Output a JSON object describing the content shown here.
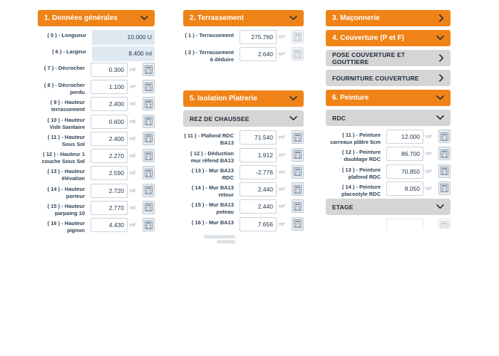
{
  "theme": {
    "accent_orange": "#EF8318",
    "orange_header_text": "#FFFFFF",
    "gray_header_bg": "#D5D5D5",
    "gray_header_text": "#1B2733",
    "label_color": "#2E4156",
    "value_color": "#253746",
    "unit_color": "#8FA2B3",
    "readonly_field_bg": "#DFE9F2",
    "input_border": "#C9D2DA",
    "calc_button_bg": "#E7EBEF",
    "calc_button_border": "#BFC9D2",
    "calc_icon_color": "#8496A8",
    "chevron_color": "#333333"
  },
  "icons": {
    "chevron_down": "chevron-down-icon",
    "chevron_right": "chevron-right-icon",
    "calculator": "calculator-icon"
  },
  "columns": [
    {
      "sections": [
        {
          "title": "1. Données générales",
          "style": "orange",
          "chevron": "down",
          "rows": [
            {
              "label": "( 5 ) - Longueur",
              "value": "10.000",
              "unit": "U",
              "readonly": true
            },
            {
              "label": "( 6 ) - Largeur",
              "value": "8.400",
              "unit": "ml",
              "readonly": true
            },
            {
              "label": "( 7 ) - Décrocher",
              "value": "0.300",
              "unit": "ml"
            },
            {
              "label": "( 8 ) - Décrocher perdu",
              "value": "1.100",
              "unit": "m²"
            },
            {
              "label": "( 9 ) - Hauteur terrassement",
              "value": "2.400",
              "unit": "ml"
            },
            {
              "label": "( 10 ) - Hauteur Vide Sanitaire",
              "value": "0.600",
              "unit": "ml"
            },
            {
              "label": "( 11 ) - Hauteur Sous Sol",
              "value": "2.400",
              "unit": "ml"
            },
            {
              "label": "( 12 ) - Hauteur 1 couche Sous Sol",
              "value": "2.270",
              "unit": "ml"
            },
            {
              "label": "( 13 ) - Hauteur élévation",
              "value": "2.590",
              "unit": "ml"
            },
            {
              "label": "( 14 ) - Hauteur porteur",
              "value": "2.720",
              "unit": "ml"
            },
            {
              "label": "( 15 ) - Hauteur parpaing 10",
              "value": "2.770",
              "unit": "ml"
            },
            {
              "label": "( 16 ) - Hauteur pignon",
              "value": "4.430",
              "unit": "ml"
            }
          ]
        }
      ]
    },
    {
      "sections": [
        {
          "title": "2. Terrassement",
          "style": "orange",
          "chevron": "down",
          "rows": [
            {
              "label": "( 1 ) - Terrassement",
              "value": "275.760",
              "unit": "m³",
              "calc_disabled": true
            },
            {
              "label": "( 2 ) - Terrassement à déduire",
              "value": "2.640",
              "unit": "m³",
              "calc_disabled": true
            }
          ]
        },
        {
          "title": "5. Isolation Platrerie",
          "style": "orange",
          "chevron": "down",
          "margin_top": 38,
          "rows": []
        },
        {
          "title": "REZ DE CHAUSSEE",
          "style": "gray",
          "chevron": "down",
          "rows": [
            {
              "label": "( 11 ) - Plafond RDC BA13",
              "value": "71.540",
              "unit": "m²"
            },
            {
              "label": "( 12 ) - Déduction mur réfend BA13",
              "value": "1.912",
              "unit": "m²"
            },
            {
              "label": "( 13 ) - Mur BA13 RDC",
              "value": "-2.776",
              "unit": "m²"
            },
            {
              "label": "( 14 ) - Mur BA13 retour",
              "value": "2.440",
              "unit": "m²"
            },
            {
              "label": "( 15 ) - Mur BA13 poteau",
              "value": "2.440",
              "unit": "m²"
            },
            {
              "label": "( 16 ) - Mur BA13",
              "value": "7.656",
              "unit": "m²"
            },
            {
              "type": "fragment"
            }
          ]
        }
      ]
    },
    {
      "sections": [
        {
          "title": "3. Maçonnerie",
          "style": "orange",
          "chevron": "right",
          "rows": []
        },
        {
          "title": "4. Couverture (P et F)",
          "style": "orange",
          "chevron": "down",
          "rows": []
        },
        {
          "title": "POSE COUVERTURE ET GOUTTIERE",
          "style": "gray",
          "chevron": "right",
          "rows": []
        },
        {
          "title": "FOURNITURE COUVERTURE",
          "style": "gray",
          "chevron": "right",
          "rows": []
        },
        {
          "title": "6. Peinture",
          "style": "orange",
          "chevron": "down",
          "rows": []
        },
        {
          "title": "RDC",
          "style": "gray",
          "chevron": "down",
          "rows": [
            {
              "label": "( 11 ) - Peinture carreaux plâtre 5cm",
              "value": "12.000",
              "unit": "m²"
            },
            {
              "label": "( 12 ) - Peinture doublage RDC",
              "value": "86.700",
              "unit": "m²"
            },
            {
              "label": "( 13 ) - Peinture plafond RDC",
              "value": "70.850",
              "unit": "m²"
            },
            {
              "label": "( 14 ) - Peinture placostyle RDC",
              "value": "8.050",
              "unit": "m²"
            }
          ]
        },
        {
          "title": "ETAGE",
          "style": "gray",
          "chevron": "down",
          "rows": [
            {
              "type": "faded-row"
            }
          ]
        }
      ]
    }
  ]
}
